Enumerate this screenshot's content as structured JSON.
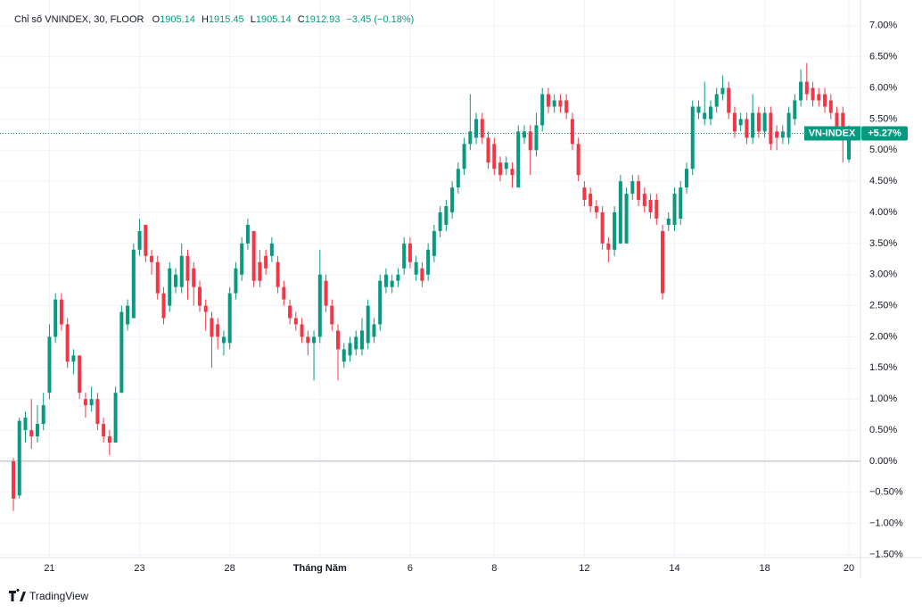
{
  "chart_data": {
    "type": "candlestick",
    "header": {
      "title": "Chỉ số VNINDEX, 30, FLOOR",
      "o_label": "O",
      "o_value": "1905.14",
      "h_label": "H",
      "h_value": "1915.45",
      "l_label": "L",
      "l_value": "1905.14",
      "c_label": "C",
      "c_value": "1912.93",
      "change": "−3.45 (−0.18%)"
    },
    "brand": "TradingView",
    "categories": [
      null,
      null,
      null,
      null,
      null,
      null,
      "21",
      null,
      null,
      null,
      null,
      null,
      null,
      null,
      null,
      null,
      null,
      null,
      null,
      null,
      null,
      "23",
      null,
      null,
      null,
      null,
      null,
      null,
      null,
      null,
      null,
      null,
      null,
      null,
      null,
      null,
      "28",
      null,
      null,
      null,
      null,
      null,
      null,
      null,
      null,
      null,
      null,
      null,
      null,
      null,
      null,
      "Tháng Năm",
      null,
      null,
      null,
      null,
      null,
      null,
      null,
      null,
      null,
      null,
      null,
      null,
      null,
      null,
      "6",
      null,
      null,
      null,
      null,
      null,
      null,
      null,
      null,
      null,
      null,
      null,
      null,
      null,
      "8",
      null,
      null,
      null,
      null,
      null,
      null,
      null,
      null,
      null,
      null,
      null,
      null,
      null,
      null,
      "12",
      null,
      null,
      null,
      null,
      null,
      null,
      null,
      null,
      null,
      null,
      null,
      null,
      null,
      null,
      "14",
      null,
      null,
      null,
      null,
      null,
      null,
      null,
      null,
      null,
      null,
      null,
      null,
      null,
      null,
      "18",
      null,
      null,
      null,
      null,
      null,
      null,
      null,
      null,
      null,
      null,
      null,
      null,
      null,
      "20"
    ],
    "series": [
      {
        "name": "VN-INDEX",
        "up_color": "#089981",
        "down_color": "#f23645",
        "open": [
          0,
          -0.55,
          0.5,
          0.5,
          0.4,
          0.6,
          1.1,
          2.0,
          2.6,
          2.2,
          1.6,
          1.7,
          1.0,
          0.9,
          1.0,
          0.6,
          0.4,
          0.3,
          1.1,
          2.2,
          2.3,
          3.4,
          3.8,
          3.3,
          3.2,
          2.7,
          2.5,
          2.8,
          2.8,
          3.3,
          3.1,
          2.8,
          2.5,
          2.3,
          2.2,
          1.9,
          1.9,
          2.7,
          3.0,
          3.5,
          3.7,
          3.2,
          3.3,
          3.3,
          3.2,
          2.8,
          2.5,
          2.3,
          2.2,
          2.0,
          1.9,
          2.0,
          2.9,
          2.5,
          2.1,
          1.6,
          1.7,
          1.8,
          1.8,
          1.9,
          2.0,
          2.2,
          2.8,
          2.8,
          2.9,
          3.1,
          3.5,
          3.0,
          3.1,
          3.0,
          3.3,
          3.7,
          3.8,
          4.0,
          4.4,
          4.7,
          5.1,
          5.2,
          5.5,
          5.2,
          5.1,
          4.8,
          4.7,
          4.7,
          4.4,
          5.2,
          5.3,
          5.0,
          5.4,
          5.9,
          5.7,
          5.8,
          5.8,
          5.5,
          5.1,
          4.4,
          4.3,
          4.1,
          4.0,
          3.5,
          3.4,
          3.5,
          3.5,
          4.3,
          4.5,
          4.3,
          4.2,
          4.2,
          3.7,
          3.8,
          3.8,
          3.9,
          4.4,
          4.7,
          5.6,
          5.5,
          5.5,
          5.7,
          5.9,
          6.0,
          5.6,
          5.4,
          5.5,
          5.2,
          5.6,
          5.3,
          5.6,
          5.3,
          5.2,
          5.2,
          5.5,
          5.8,
          6.1,
          6.0,
          5.9,
          5.9,
          5.8,
          5.6,
          5.6,
          4.85
        ],
        "high": [
          0.05,
          0.7,
          0.8,
          1.0,
          0.9,
          1.1,
          2.2,
          2.7,
          2.7,
          2.3,
          1.8,
          1.7,
          1.1,
          1.2,
          1.1,
          0.7,
          0.5,
          1.2,
          2.5,
          2.6,
          3.5,
          3.9,
          3.8,
          3.4,
          3.3,
          2.8,
          3.2,
          3.1,
          3.5,
          3.4,
          3.2,
          2.9,
          2.6,
          2.4,
          2.3,
          2.1,
          2.8,
          3.2,
          3.6,
          3.9,
          3.7,
          3.4,
          3.4,
          3.6,
          3.3,
          2.9,
          2.6,
          2.4,
          2.3,
          2.1,
          2.1,
          3.4,
          3.0,
          2.6,
          2.2,
          1.9,
          2.0,
          2.1,
          2.3,
          2.6,
          2.3,
          3.0,
          3.1,
          3.0,
          3.1,
          3.6,
          3.6,
          3.3,
          3.2,
          3.5,
          3.8,
          4.1,
          4.2,
          4.5,
          4.8,
          5.2,
          5.9,
          5.6,
          5.6,
          5.3,
          5.2,
          4.9,
          4.9,
          4.8,
          5.4,
          5.4,
          5.4,
          5.6,
          6.0,
          6.0,
          5.9,
          5.9,
          5.9,
          5.6,
          5.2,
          4.5,
          4.4,
          4.2,
          4.1,
          3.6,
          4.1,
          4.6,
          4.4,
          4.6,
          4.6,
          4.4,
          4.3,
          4.3,
          3.8,
          4.0,
          4.4,
          4.5,
          4.8,
          5.8,
          5.8,
          6.1,
          5.8,
          6.0,
          6.2,
          6.1,
          5.7,
          5.6,
          5.6,
          5.9,
          5.7,
          5.7,
          5.7,
          5.4,
          5.4,
          5.7,
          5.9,
          6.3,
          6.4,
          6.1,
          6.0,
          6.0,
          5.9,
          5.7,
          5.7,
          5.4
        ],
        "low": [
          -0.8,
          -0.6,
          0.3,
          0.2,
          0.3,
          0.5,
          1.0,
          1.9,
          2.1,
          1.5,
          1.4,
          1.0,
          0.7,
          0.8,
          0.5,
          0.3,
          0.1,
          0.3,
          1.1,
          2.1,
          2.3,
          3.3,
          3.2,
          3.0,
          2.6,
          2.2,
          2.4,
          2.7,
          2.7,
          2.6,
          2.5,
          2.4,
          2.1,
          1.5,
          1.8,
          1.7,
          1.8,
          2.6,
          2.9,
          3.4,
          2.8,
          2.8,
          3.0,
          3.2,
          2.7,
          2.5,
          2.2,
          2.1,
          1.9,
          1.7,
          1.3,
          1.9,
          2.4,
          2.1,
          1.3,
          1.5,
          1.6,
          1.7,
          1.7,
          1.8,
          1.9,
          2.1,
          2.7,
          2.7,
          2.8,
          3.0,
          3.1,
          2.9,
          2.8,
          2.9,
          3.2,
          3.6,
          3.7,
          3.9,
          4.3,
          4.6,
          5.0,
          5.1,
          5.1,
          4.7,
          4.6,
          4.5,
          4.6,
          4.4,
          4.4,
          5.1,
          4.6,
          4.9,
          5.3,
          5.6,
          5.6,
          5.6,
          5.5,
          5.0,
          4.5,
          4.1,
          4.0,
          3.9,
          3.4,
          3.2,
          3.3,
          3.5,
          3.5,
          4.2,
          4.1,
          4.0,
          3.9,
          3.8,
          2.6,
          3.7,
          3.7,
          3.8,
          4.3,
          4.6,
          5.5,
          5.4,
          5.4,
          5.6,
          5.8,
          5.5,
          5.2,
          5.3,
          5.1,
          5.1,
          5.2,
          5.2,
          5.0,
          5.0,
          5.1,
          5.1,
          5.4,
          5.7,
          5.8,
          5.7,
          5.7,
          5.6,
          5.5,
          5.2,
          4.8,
          4.8
        ],
        "close": [
          -0.6,
          0.65,
          0.7,
          0.4,
          0.6,
          0.9,
          2.0,
          2.6,
          2.2,
          1.6,
          1.7,
          1.1,
          0.9,
          1.0,
          0.6,
          0.4,
          0.3,
          1.1,
          2.4,
          2.5,
          3.4,
          3.7,
          3.3,
          3.2,
          2.7,
          2.3,
          3.1,
          3.0,
          3.3,
          2.9,
          2.8,
          2.5,
          2.4,
          2.0,
          2.0,
          2.0,
          2.7,
          3.1,
          3.5,
          3.8,
          2.9,
          2.9,
          3.1,
          3.5,
          2.8,
          2.6,
          2.3,
          2.2,
          2.0,
          1.9,
          2.0,
          3.0,
          2.5,
          2.2,
          1.8,
          1.8,
          1.9,
          2.0,
          2.1,
          2.5,
          2.2,
          2.9,
          3.0,
          2.9,
          3.0,
          3.5,
          3.2,
          3.2,
          2.9,
          3.4,
          3.7,
          4.0,
          4.1,
          4.4,
          4.7,
          5.1,
          5.3,
          5.5,
          5.2,
          4.8,
          4.7,
          4.6,
          4.8,
          4.6,
          5.3,
          5.3,
          5.0,
          5.4,
          5.9,
          5.7,
          5.8,
          5.7,
          5.6,
          5.1,
          4.6,
          4.2,
          4.1,
          4.0,
          3.5,
          3.4,
          4.0,
          4.5,
          4.3,
          4.5,
          4.2,
          4.1,
          4.0,
          3.9,
          2.7,
          3.9,
          4.3,
          4.4,
          4.7,
          5.7,
          5.7,
          5.6,
          5.7,
          5.9,
          6.0,
          5.6,
          5.3,
          5.5,
          5.2,
          5.6,
          5.3,
          5.6,
          5.1,
          5.2,
          5.3,
          5.6,
          5.8,
          6.1,
          5.9,
          5.8,
          5.8,
          5.7,
          5.6,
          5.3,
          5.3,
          5.27
        ],
        "last_value_label": "+5.27%"
      }
    ],
    "baseline": 0,
    "ylim": [
      -1.55,
      7.27
    ],
    "yticks": [
      {
        "value": -1.5,
        "label": "−1.50%"
      },
      {
        "value": -1,
        "label": "−1.00%"
      },
      {
        "value": -0.5,
        "label": "−0.50%"
      },
      {
        "value": 0,
        "label": "0.00%"
      },
      {
        "value": 0.5,
        "label": "0.50%"
      },
      {
        "value": 1,
        "label": "1.00%"
      },
      {
        "value": 1.5,
        "label": "1.50%"
      },
      {
        "value": 2,
        "label": "2.00%"
      },
      {
        "value": 2.5,
        "label": "2.50%"
      },
      {
        "value": 3,
        "label": "3.00%"
      },
      {
        "value": 3.5,
        "label": "3.50%"
      },
      {
        "value": 4,
        "label": "4.00%"
      },
      {
        "value": 4.5,
        "label": "4.50%"
      },
      {
        "value": 5,
        "label": "5.00%"
      },
      {
        "value": 5.5,
        "label": "5.50%"
      },
      {
        "value": 6,
        "label": "6.00%"
      },
      {
        "value": 6.5,
        "label": "6.50%"
      },
      {
        "value": 7,
        "label": "7.00%"
      }
    ],
    "grid": true
  }
}
